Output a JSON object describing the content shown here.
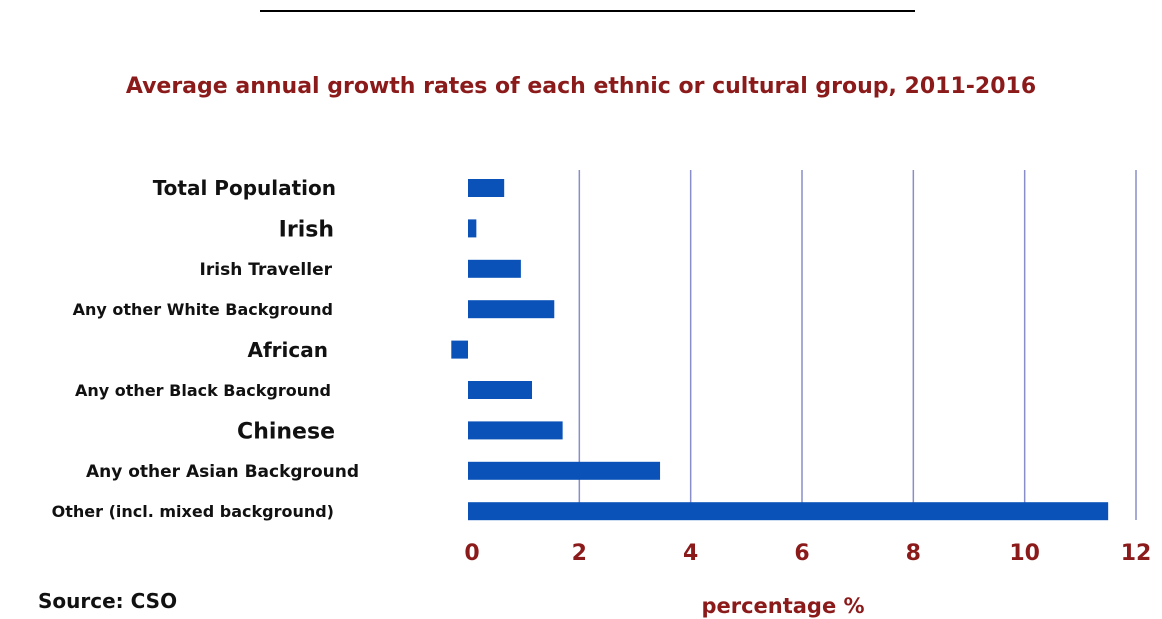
{
  "chart_data": {
    "type": "bar",
    "orientation": "horizontal",
    "title": "Average annual growth rates of each ethnic or cultural group, 2011-2016",
    "xlabel": "percentage %",
    "ylabel": "",
    "xlim": [
      0,
      12
    ],
    "x_ticks": [
      "0",
      "2",
      "4",
      "6",
      "8",
      "10",
      "12"
    ],
    "grid": "vertical",
    "bar_color": "#0a52b8",
    "title_color": "#8b1a1a",
    "categories": [
      "Total Population",
      "Irish",
      "Irish Traveller",
      "Any other White Background",
      "African",
      "Any other Black Background",
      "Chinese",
      "Any other Asian Background",
      "Other (incl. mixed background)"
    ],
    "values": [
      0.65,
      0.15,
      0.95,
      1.55,
      -0.3,
      1.15,
      1.7,
      3.45,
      11.5
    ]
  },
  "source_note": "Source: CSO"
}
